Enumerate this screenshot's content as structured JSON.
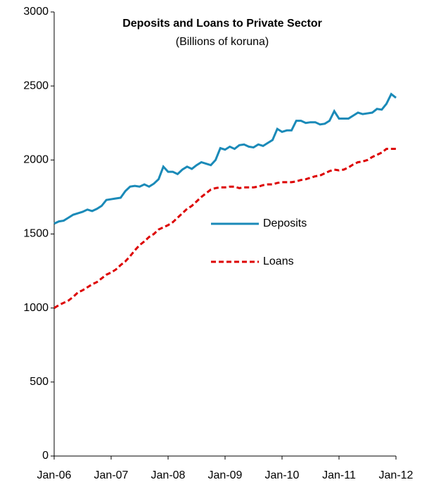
{
  "chart_data": {
    "type": "line",
    "title": "Deposits and Loans to Private Sector",
    "subtitle": "(Billions of koruna)",
    "x": [
      "2006-01",
      "2006-02",
      "2006-03",
      "2006-04",
      "2006-05",
      "2006-06",
      "2006-07",
      "2006-08",
      "2006-09",
      "2006-10",
      "2006-11",
      "2006-12",
      "2007-01",
      "2007-02",
      "2007-03",
      "2007-04",
      "2007-05",
      "2007-06",
      "2007-07",
      "2007-08",
      "2007-09",
      "2007-10",
      "2007-11",
      "2007-12",
      "2008-01",
      "2008-02",
      "2008-03",
      "2008-04",
      "2008-05",
      "2008-06",
      "2008-07",
      "2008-08",
      "2008-09",
      "2008-10",
      "2008-11",
      "2008-12",
      "2009-01",
      "2009-02",
      "2009-03",
      "2009-04",
      "2009-05",
      "2009-06",
      "2009-07",
      "2009-08",
      "2009-09",
      "2009-10",
      "2009-11",
      "2009-12",
      "2010-01",
      "2010-02",
      "2010-03",
      "2010-04",
      "2010-05",
      "2010-06",
      "2010-07",
      "2010-08",
      "2010-09",
      "2010-10",
      "2010-11",
      "2010-12",
      "2011-01",
      "2011-02",
      "2011-03",
      "2011-04",
      "2011-05",
      "2011-06",
      "2011-07",
      "2011-08",
      "2011-09",
      "2011-10",
      "2011-11",
      "2011-12",
      "2012-01"
    ],
    "series": [
      {
        "name": "Deposits",
        "color": "#1a8ab8",
        "dash": false,
        "values": [
          1570,
          1585,
          1590,
          1610,
          1630,
          1640,
          1650,
          1665,
          1655,
          1670,
          1690,
          1730,
          1735,
          1740,
          1745,
          1790,
          1820,
          1825,
          1820,
          1835,
          1820,
          1840,
          1870,
          1955,
          1920,
          1920,
          1905,
          1935,
          1955,
          1940,
          1965,
          1985,
          1975,
          1965,
          2000,
          2080,
          2070,
          2090,
          2075,
          2100,
          2105,
          2090,
          2085,
          2105,
          2095,
          2115,
          2135,
          2210,
          2190,
          2200,
          2200,
          2265,
          2265,
          2250,
          2255,
          2255,
          2240,
          2245,
          2265,
          2330,
          2280,
          2280,
          2280,
          2300,
          2320,
          2310,
          2315,
          2320,
          2345,
          2340,
          2380,
          2445,
          2420
        ]
      },
      {
        "name": "Loans",
        "color": "#dd0000",
        "dash": true,
        "values": [
          1000,
          1020,
          1035,
          1050,
          1075,
          1105,
          1120,
          1140,
          1160,
          1175,
          1200,
          1225,
          1240,
          1260,
          1290,
          1315,
          1350,
          1390,
          1425,
          1450,
          1480,
          1500,
          1530,
          1545,
          1560,
          1580,
          1610,
          1640,
          1670,
          1690,
          1720,
          1750,
          1775,
          1800,
          1810,
          1815,
          1815,
          1820,
          1820,
          1810,
          1815,
          1815,
          1815,
          1820,
          1830,
          1835,
          1835,
          1845,
          1850,
          1850,
          1850,
          1855,
          1865,
          1870,
          1880,
          1890,
          1895,
          1910,
          1925,
          1935,
          1930,
          1935,
          1950,
          1970,
          1985,
          1990,
          2000,
          2020,
          2035,
          2050,
          2075,
          2075,
          2075
        ]
      }
    ],
    "ylim": [
      0,
      3000
    ],
    "yticks": [
      0,
      500,
      1000,
      1500,
      2000,
      2500,
      3000
    ],
    "xticks": [
      {
        "value": "2006-01",
        "label": "Jan-06"
      },
      {
        "value": "2007-01",
        "label": "Jan-07"
      },
      {
        "value": "2008-01",
        "label": "Jan-08"
      },
      {
        "value": "2009-01",
        "label": "Jan-09"
      },
      {
        "value": "2010-01",
        "label": "Jan-10"
      },
      {
        "value": "2011-01",
        "label": "Jan-11"
      },
      {
        "value": "2012-01",
        "label": "Jan-12"
      }
    ],
    "title_color": "#1f7bbf"
  }
}
